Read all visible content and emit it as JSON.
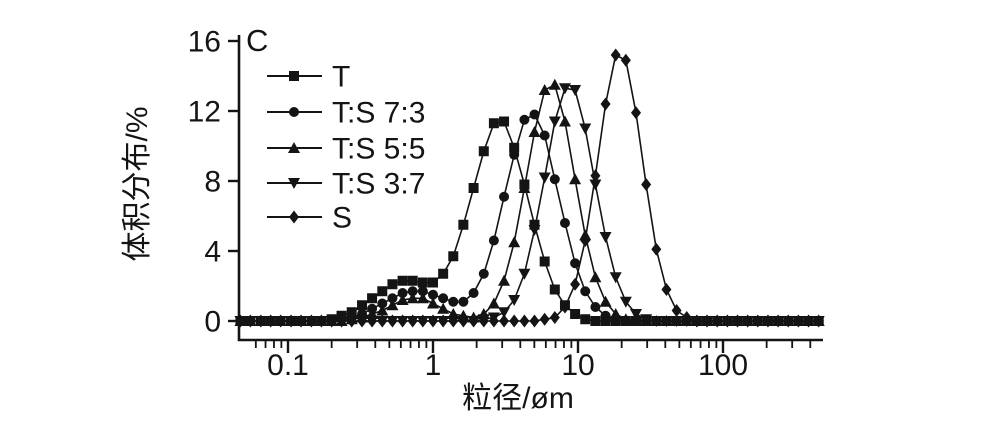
{
  "figure": {
    "panel_label": "C",
    "background": "#ffffff",
    "ink_color": "#141414"
  },
  "chart_data": {
    "type": "line",
    "title": "",
    "xlabel": "粒径/øm",
    "ylabel": "体积分布/%",
    "x_scale": "log",
    "y_scale": "linear",
    "grid": false,
    "legend_position": "upper-left-inside",
    "xlim": [
      0.045,
      490
    ],
    "ylim": [
      -1.2,
      16.4
    ],
    "x_tick_labels": [
      "0.1",
      "1",
      "10",
      "100"
    ],
    "x_tick_values": [
      0.1,
      1,
      10,
      100
    ],
    "y_tick_labels": [
      "0",
      "4",
      "8",
      "12",
      "16"
    ],
    "y_tick_values": [
      0,
      4,
      8,
      12,
      16
    ],
    "x": [
      0.047,
      0.055,
      0.065,
      0.076,
      0.089,
      0.105,
      0.123,
      0.145,
      0.17,
      0.2,
      0.234,
      0.275,
      0.324,
      0.38,
      0.447,
      0.525,
      0.617,
      0.724,
      0.851,
      1.0,
      1.175,
      1.38,
      1.62,
      1.905,
      2.24,
      2.63,
      3.09,
      3.63,
      4.27,
      5.01,
      5.89,
      6.92,
      8.13,
      9.55,
      11.22,
      13.18,
      15.49,
      18.2,
      21.38,
      25.12,
      29.51,
      34.67,
      40.74,
      47.86,
      56.23,
      66.07,
      77.62,
      91.2,
      107.2,
      125.9,
      147.9,
      173.8,
      204.2,
      239.9,
      281.8,
      331.1,
      389.0,
      457.1
    ],
    "series": [
      {
        "name": "T",
        "marker": "square",
        "color": "#141414",
        "values": [
          0,
          0,
          0,
          0,
          0,
          0,
          0,
          0,
          0,
          0.1,
          0.3,
          0.5,
          0.9,
          1.3,
          1.7,
          2.1,
          2.3,
          2.3,
          2.2,
          2.2,
          2.7,
          3.7,
          5.5,
          7.6,
          9.7,
          11.3,
          11.4,
          9.9,
          7.8,
          5.5,
          3.4,
          1.8,
          0.9,
          0.4,
          0.1,
          0,
          0,
          0,
          0,
          0,
          0,
          0,
          0,
          0,
          0,
          0,
          0,
          0,
          0,
          0,
          0,
          0,
          0,
          0,
          0,
          0,
          0,
          0
        ]
      },
      {
        "name": "T:S 7:3",
        "marker": "circle",
        "color": "#141414",
        "values": [
          0,
          0,
          0,
          0,
          0,
          0,
          0,
          0,
          0,
          0,
          0.1,
          0.2,
          0.4,
          0.7,
          1.0,
          1.3,
          1.6,
          1.7,
          1.7,
          1.5,
          1.3,
          1.1,
          1.1,
          1.6,
          2.7,
          4.6,
          7.1,
          9.5,
          11.5,
          11.8,
          10.6,
          8.1,
          5.6,
          3.3,
          1.7,
          0.8,
          0.3,
          0.1,
          0,
          0,
          0,
          0,
          0,
          0,
          0,
          0,
          0,
          0,
          0,
          0,
          0,
          0,
          0,
          0,
          0,
          0,
          0,
          0
        ]
      },
      {
        "name": "T:S 5:5",
        "marker": "triangle-up",
        "color": "#141414",
        "values": [
          0,
          0,
          0,
          0,
          0,
          0,
          0,
          0,
          0,
          0,
          0,
          0.1,
          0.2,
          0.4,
          0.6,
          0.9,
          1.2,
          1.3,
          1.3,
          1.0,
          0.7,
          0.4,
          0.3,
          0.2,
          0.4,
          1.0,
          2.3,
          4.5,
          7.6,
          10.8,
          13.2,
          13.5,
          11.4,
          8.1,
          4.9,
          2.5,
          1.1,
          0.4,
          0.1,
          0,
          0,
          0,
          0,
          0,
          0,
          0,
          0,
          0,
          0,
          0,
          0,
          0,
          0,
          0,
          0,
          0,
          0,
          0
        ]
      },
      {
        "name": "T:S 3:7",
        "marker": "triangle-down",
        "color": "#141414",
        "values": [
          0,
          0,
          0,
          0,
          0,
          0,
          0,
          0,
          0,
          0,
          0,
          0,
          0,
          0,
          0,
          0,
          0,
          0,
          0,
          0,
          0,
          0,
          0,
          0,
          0.1,
          0.2,
          0.5,
          1.2,
          2.7,
          5.2,
          8.2,
          11.4,
          13.3,
          13.2,
          11.0,
          7.8,
          4.8,
          2.5,
          1.1,
          0.4,
          0.1,
          0,
          0,
          0,
          0,
          0,
          0,
          0,
          0,
          0,
          0,
          0,
          0,
          0,
          0,
          0,
          0,
          0
        ]
      },
      {
        "name": "S",
        "marker": "diamond",
        "color": "#141414",
        "values": [
          0,
          0,
          0,
          0,
          0,
          0,
          0,
          0,
          0,
          0,
          0,
          0,
          0,
          0,
          0,
          0,
          0,
          0,
          0,
          0,
          0,
          0,
          0,
          0,
          0,
          0,
          0,
          0,
          0,
          0,
          0.1,
          0.2,
          0.8,
          2.1,
          4.6,
          8.3,
          12.4,
          15.2,
          14.9,
          11.9,
          7.8,
          4.1,
          1.8,
          0.6,
          0.2,
          0,
          0,
          0,
          0,
          0,
          0,
          0,
          0,
          0,
          0,
          0,
          0,
          0
        ]
      }
    ]
  }
}
